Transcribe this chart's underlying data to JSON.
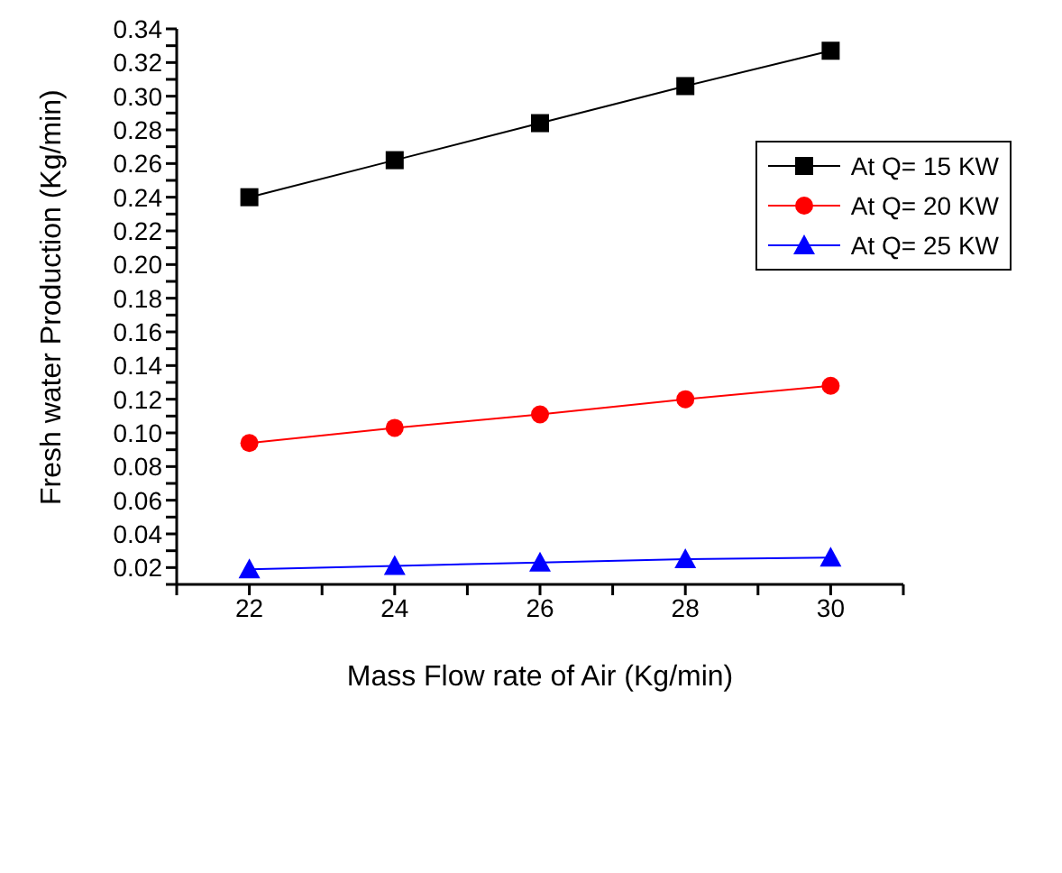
{
  "chart_data": {
    "type": "line",
    "xlabel": "Mass Flow rate of Air (Kg/min)",
    "ylabel": "Fresh water Production (Kg/min)",
    "x": [
      22,
      24,
      26,
      28,
      30
    ],
    "series": [
      {
        "name": "At  Q= 15 KW",
        "color": "#000000",
        "marker": "square",
        "values": [
          0.24,
          0.262,
          0.284,
          0.306,
          0.327
        ]
      },
      {
        "name": "At  Q= 20 KW",
        "color": "#ff0000",
        "marker": "circle",
        "values": [
          0.094,
          0.103,
          0.111,
          0.12,
          0.128
        ]
      },
      {
        "name": "At  Q= 25 KW",
        "color": "#0000ff",
        "marker": "triangle",
        "values": [
          0.019,
          0.021,
          0.023,
          0.025,
          0.026
        ]
      }
    ],
    "xlim": [
      21,
      31
    ],
    "xticks": [
      {
        "value": 21,
        "label": null
      },
      22,
      {
        "value": 23,
        "label": null
      },
      24,
      {
        "value": 25,
        "label": null
      },
      26,
      {
        "value": 27,
        "label": null
      },
      28,
      {
        "value": 29,
        "label": null
      },
      30,
      {
        "value": 31,
        "label": null
      }
    ],
    "ylim": [
      0.01,
      0.34
    ],
    "yticks": [
      {
        "value": 0.01,
        "label": null
      },
      {
        "value": 0.02,
        "label": "0.02"
      },
      {
        "value": 0.03,
        "label": null
      },
      {
        "value": 0.04,
        "label": "0.04"
      },
      {
        "value": 0.05,
        "label": null
      },
      {
        "value": 0.06,
        "label": "0.06"
      },
      {
        "value": 0.07,
        "label": null
      },
      {
        "value": 0.08,
        "label": "0.08"
      },
      {
        "value": 0.09,
        "label": null
      },
      {
        "value": 0.1,
        "label": "0.10"
      },
      {
        "value": 0.11,
        "label": null
      },
      {
        "value": 0.12,
        "label": "0.12"
      },
      {
        "value": 0.13,
        "label": null
      },
      {
        "value": 0.14,
        "label": "0.14"
      },
      {
        "value": 0.15,
        "label": null
      },
      {
        "value": 0.16,
        "label": "0.16"
      },
      {
        "value": 0.17,
        "label": null
      },
      {
        "value": 0.18,
        "label": "0.18"
      },
      {
        "value": 0.19,
        "label": null
      },
      {
        "value": 0.2,
        "label": "0.20"
      },
      {
        "value": 0.21,
        "label": null
      },
      {
        "value": 0.22,
        "label": "0.22"
      },
      {
        "value": 0.23,
        "label": null
      },
      {
        "value": 0.24,
        "label": "0.24"
      },
      {
        "value": 0.25,
        "label": null
      },
      {
        "value": 0.26,
        "label": "0.26"
      },
      {
        "value": 0.27,
        "label": null
      },
      {
        "value": 0.28,
        "label": "0.28"
      },
      {
        "value": 0.29,
        "label": null
      },
      {
        "value": 0.3,
        "label": "0.30"
      },
      {
        "value": 0.31,
        "label": null
      },
      {
        "value": 0.32,
        "label": "0.32"
      },
      {
        "value": 0.33,
        "label": null
      },
      {
        "value": 0.34,
        "label": "0.34"
      }
    ],
    "grid": false,
    "legend": "top right",
    "line_style": "solid"
  }
}
